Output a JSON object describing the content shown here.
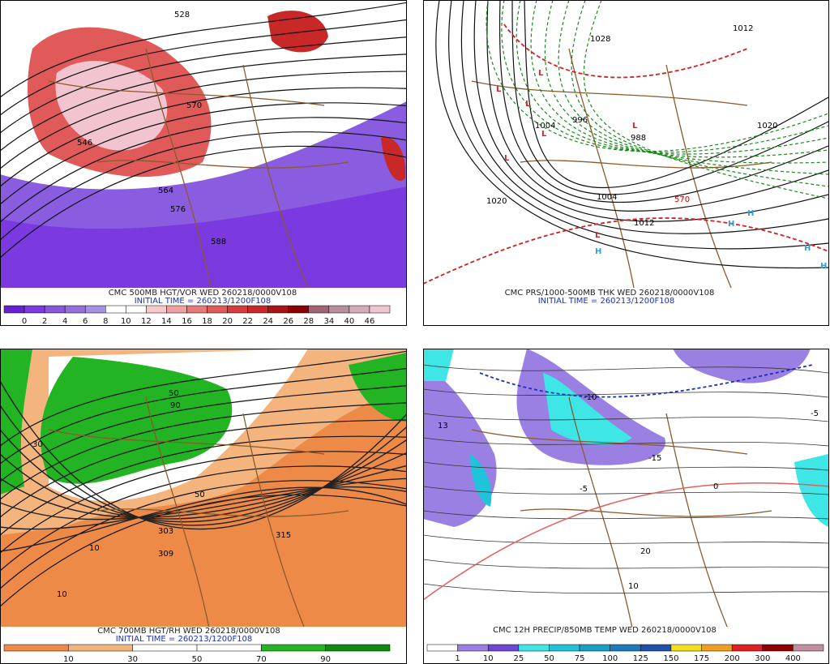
{
  "panels": [
    {
      "title": "CMC 500MB HGT/VOR WED 260218/0000V108",
      "subtitle": "INITIAL TIME = 260213/1200F108",
      "map_labels": [
        "528",
        "570",
        "564",
        "576",
        "588",
        "546"
      ],
      "colorbar": {
        "labels": [
          "0",
          "2",
          "4",
          "6",
          "8",
          "10",
          "12",
          "14",
          "16",
          "18",
          "20",
          "22",
          "24",
          "26",
          "28",
          "34",
          "40",
          "46"
        ],
        "colors": [
          "#6a1fd0",
          "#7a3ae0",
          "#8855dd",
          "#9370db",
          "#a590e4",
          "#ffffff",
          "#ffffff",
          "#f6caca",
          "#f0a0a0",
          "#e67a7a",
          "#e05a5a",
          "#d63c3c",
          "#c82828",
          "#a81414",
          "#8b0000",
          "#a06474",
          "#b88e9c",
          "#d6aab8",
          "#f2c4cf"
        ]
      }
    },
    {
      "title": "CMC PRS/1000-500MB THK WED 260218/0000V108",
      "subtitle": "INITIAL TIME = 260213/1200F108",
      "map_labels": [
        "1020",
        "1028",
        "1004",
        "996",
        "988",
        "1012",
        "1020",
        "1012",
        "570",
        "1004"
      ],
      "lows": [
        "L",
        "L",
        "L",
        "L",
        "L",
        "L",
        "L"
      ],
      "highs": [
        "H",
        "H",
        "H",
        "H",
        "H"
      ]
    },
    {
      "title": "CMC 700MB HGT/RH WED 260218/0000V108",
      "subtitle": "INITIAL TIME = 260213/1200F108",
      "map_labels": [
        "50",
        "90",
        "30",
        "10",
        "315",
        "303",
        "309",
        "50",
        "10"
      ],
      "colorbar": {
        "labels": [
          "10",
          "30",
          "50",
          "70",
          "90"
        ],
        "colors": [
          "#ee8a48",
          "#f4b47e",
          "#ffffff",
          "#ffffff",
          "#22b422",
          "#118a11"
        ]
      }
    },
    {
      "title": "CMC 12H PRECIP/850MB TEMP WED 260218/0000V108",
      "map_labels": [
        "-10",
        "-15",
        "-5",
        "0",
        "10",
        "20",
        "13",
        "-5"
      ],
      "colorbar": {
        "labels": [
          "1",
          "10",
          "25",
          "50",
          "75",
          "100",
          "125",
          "150",
          "175",
          "200",
          "300",
          "400"
        ],
        "colors": [
          "#ffffff",
          "#9a80e2",
          "#6e48d2",
          "#3ee6e6",
          "#20c4d8",
          "#1aa0c0",
          "#1c7ab8",
          "#2050a8",
          "#f0e020",
          "#f0a020",
          "#e02020",
          "#900000",
          "#c090a0"
        ]
      }
    }
  ]
}
